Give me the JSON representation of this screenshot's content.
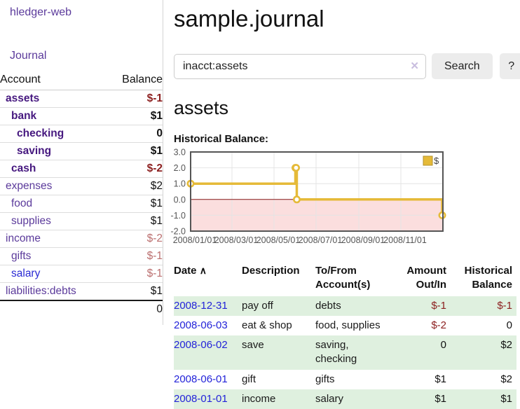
{
  "sidebar": {
    "app_title": "hledger-web",
    "journal_label": "Journal",
    "accounts_table": {
      "headers": {
        "account": "Account",
        "balance": "Balance"
      },
      "rows": [
        {
          "name": "assets",
          "indent": 1,
          "style": "bold",
          "balance": "$-1",
          "balance_style": "neg-bold"
        },
        {
          "name": "bank",
          "indent": 2,
          "style": "bold",
          "balance": "$1",
          "balance_style": "bold"
        },
        {
          "name": "checking",
          "indent": 3,
          "style": "bold",
          "balance": "0",
          "balance_style": "bold"
        },
        {
          "name": "saving",
          "indent": 3,
          "style": "bold",
          "balance": "$1",
          "balance_style": "bold"
        },
        {
          "name": "cash",
          "indent": 2,
          "style": "bold",
          "balance": "$-2",
          "balance_style": "neg-bold"
        },
        {
          "name": "expenses",
          "indent": 1,
          "style": "normal",
          "balance": "$2",
          "balance_style": "normal"
        },
        {
          "name": "food",
          "indent": 2,
          "style": "normal",
          "balance": "$1",
          "balance_style": "normal"
        },
        {
          "name": "supplies",
          "indent": 2,
          "style": "normal",
          "balance": "$1",
          "balance_style": "normal"
        },
        {
          "name": "income",
          "indent": 1,
          "style": "normal",
          "balance": "$-2",
          "balance_style": "neg-muted"
        },
        {
          "name": "gifts",
          "indent": 2,
          "style": "normal",
          "balance": "$-1",
          "balance_style": "neg-muted"
        },
        {
          "name": "salary",
          "indent": 2,
          "style": "blue",
          "balance": "$-1",
          "balance_style": "neg-muted"
        },
        {
          "name": "liabilities:debts",
          "indent": 1,
          "style": "normal",
          "balance": "$1",
          "balance_style": "normal"
        }
      ],
      "total": "0"
    }
  },
  "header": {
    "title": "sample.journal"
  },
  "search": {
    "query": "inacct:assets",
    "clear_icon": "✕",
    "search_button": "Search",
    "help_button": "?"
  },
  "account_page": {
    "title": "assets",
    "chart_label": "Historical Balance:"
  },
  "chart_data": {
    "type": "line",
    "step": true,
    "title": "Historical Balance:",
    "series": [
      {
        "name": "$",
        "points": [
          [
            "2008-01-01",
            1
          ],
          [
            "2008-06-01",
            2
          ],
          [
            "2008-06-02",
            2
          ],
          [
            "2008-06-03",
            0
          ],
          [
            "2008-12-31",
            -1
          ]
        ]
      }
    ],
    "xrange": [
      "2008-01-01",
      "2009-01-01"
    ],
    "ylim": [
      -2,
      3
    ],
    "yticks": [
      3,
      2,
      1,
      0,
      -1,
      -2
    ],
    "ytick_labels": [
      "3.0",
      "2.0",
      "1.0",
      "0.0",
      "-1.0",
      "-2.0"
    ],
    "xticks": [
      "2008-01-01",
      "2008-03-01",
      "2008-05-01",
      "2008-07-01",
      "2008-09-01",
      "2008-11-01"
    ],
    "xtick_labels": [
      "2008/01/01",
      "2008/03/01",
      "2008/05/01",
      "2008/07/01",
      "2008/09/01",
      "2008/11/01"
    ],
    "grid": true,
    "legend_position": "top-right",
    "line_color": "#e5ba38",
    "legend_border_color": "#b3922e",
    "negative_fill": "#fbdede",
    "zero_line_color": "#8b1a1a",
    "border_color": "#555555",
    "grid_color": "#e4e4e4"
  },
  "register_table": {
    "headers": {
      "date": "Date",
      "sort_icon": "∧",
      "description": "Description",
      "tofrom_line1": "To/From",
      "tofrom_line2": "Account(s)",
      "amount_line1": "Amount",
      "amount_line2": "Out/In",
      "balance_line1": "Historical",
      "balance_line2": "Balance"
    },
    "rows": [
      {
        "date": "2008-12-31",
        "description": "pay off",
        "accounts": "debts",
        "amount": "$-1",
        "amount_style": "neg",
        "balance": "$-1",
        "balance_style": "neg"
      },
      {
        "date": "2008-06-03",
        "description": "eat & shop",
        "accounts": "food, supplies",
        "amount": "$-2",
        "amount_style": "neg",
        "balance": "0",
        "balance_style": "normal"
      },
      {
        "date": "2008-06-02",
        "description": "save",
        "accounts": "saving, checking",
        "amount": "0",
        "amount_style": "normal",
        "balance": "$2",
        "balance_style": "normal"
      },
      {
        "date": "2008-06-01",
        "description": "gift",
        "accounts": "gifts",
        "amount": "$1",
        "amount_style": "normal",
        "balance": "$2",
        "balance_style": "normal"
      },
      {
        "date": "2008-01-01",
        "description": "income",
        "accounts": "salary",
        "amount": "$1",
        "amount_style": "normal",
        "balance": "$1",
        "balance_style": "normal"
      }
    ]
  }
}
